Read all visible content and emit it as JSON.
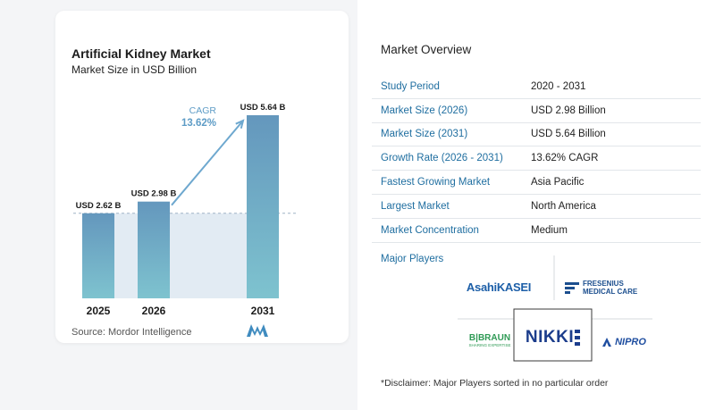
{
  "chart_data": {
    "type": "bar",
    "title": "Artificial Kidney Market",
    "subtitle": "Market Size in USD Billion",
    "categories": [
      "2025",
      "2026",
      "2031"
    ],
    "values": [
      2.62,
      2.98,
      5.64
    ],
    "data_labels": [
      "USD 2.62 B",
      "USD 2.98 B",
      "USD 5.64 B"
    ],
    "annotation": {
      "label": "CAGR",
      "value": "13.62%"
    },
    "colors": {
      "bar_top": "#6497bd",
      "bar_bottom": "#7ec3cf",
      "band": "#e2ebf3",
      "arrow": "#6ea8cf"
    }
  },
  "source": "Source:  Mordor Intelligence",
  "overview": {
    "title": "Market Overview",
    "rows": [
      {
        "label": "Study Period",
        "value": "2020 - 2031"
      },
      {
        "label": "Market Size (2026)",
        "value": "USD 2.98 Billion"
      },
      {
        "label": "Market Size (2031)",
        "value": "USD 5.64 Billion"
      },
      {
        "label": "Growth Rate (2026 - 2031)",
        "value": "13.62% CAGR"
      },
      {
        "label": "Fastest Growing Market",
        "value": "Asia Pacific"
      },
      {
        "label": "Largest Market",
        "value": "North America"
      },
      {
        "label": "Market Concentration",
        "value": "Medium"
      }
    ],
    "players_label": "Major Players",
    "players": {
      "asahi_a": "Asahi",
      "asahi_b": "KASEI",
      "fresenius_1": "FRESENIUS",
      "fresenius_2": "MEDICAL CARE",
      "bbraun_1": "B|BRAUN",
      "bbraun_2": "SHARING EXPERTISE",
      "nikkiso": "NIKKI",
      "nipro": "NIPRO"
    },
    "disclaimer": "*Disclaimer: Major Players sorted in no particular order"
  }
}
